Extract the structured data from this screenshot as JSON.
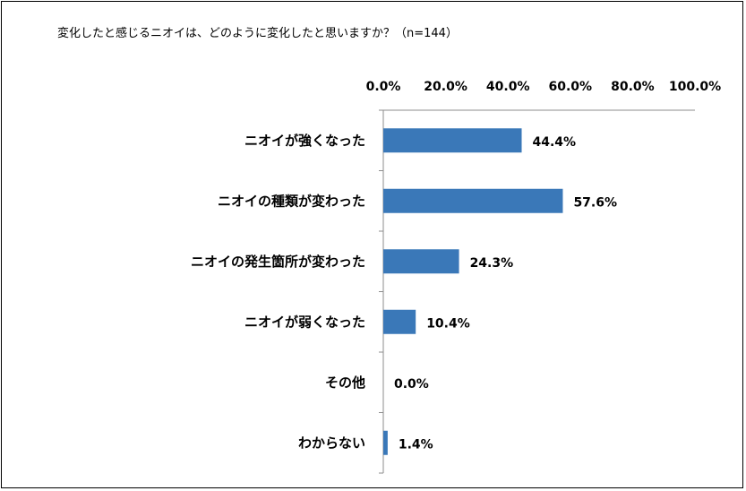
{
  "chart_data": {
    "type": "bar",
    "orientation": "horizontal",
    "title": "変化したと感じるニオイは、どのように変化したと思いますか？（n=144）",
    "categories": [
      "ニオイが強くなった",
      "ニオイの種類が変わった",
      "ニオイの発生箇所が変わった",
      "ニオイが弱くなった",
      "その他",
      "わからない"
    ],
    "values": [
      44.4,
      57.6,
      24.3,
      10.4,
      0.0,
      1.4
    ],
    "value_labels": [
      "44.4%",
      "57.6%",
      "24.3%",
      "10.4%",
      "0.0%",
      "1.4%"
    ],
    "xlim": [
      0,
      100
    ],
    "x_ticks": [
      "0.0%",
      "20.0%",
      "40.0%",
      "60.0%",
      "80.0%",
      "100.0%"
    ],
    "x_axis_position": "top",
    "grid": false,
    "legend": "none",
    "bar_color": "#3a78b8"
  }
}
